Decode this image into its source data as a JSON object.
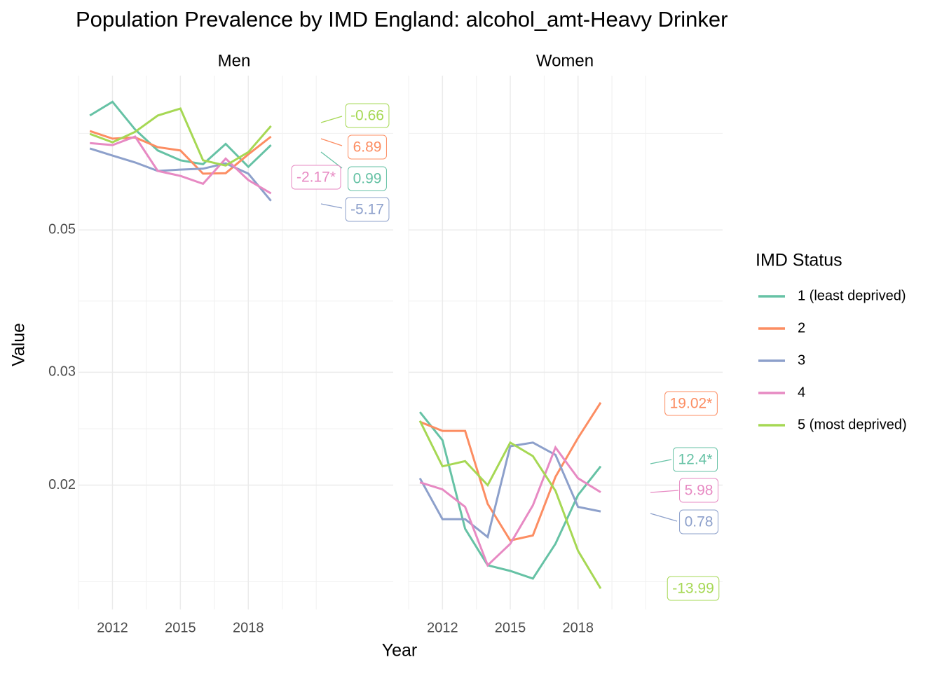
{
  "chart_data": {
    "type": "line",
    "title": "Population Prevalence by IMD England: alcohol_amt-Heavy Drinker",
    "x_label": "Year",
    "y_label": "Value",
    "legend_title": "IMD Status",
    "log_y": true,
    "grid": true,
    "legend_position": "right",
    "xlim": [
      2010.5,
      2024.4
    ],
    "xticks": [
      2012,
      2015,
      2018
    ],
    "ylim": [
      0.0128,
      0.087
    ],
    "yticks": [
      0.02,
      0.03,
      0.05
    ],
    "x": [
      2011,
      2012,
      2013,
      2014,
      2015,
      2016,
      2017,
      2018,
      2019
    ],
    "series": [
      {
        "name": "1 (least deprived)",
        "color": "#66c2a5"
      },
      {
        "name": "2",
        "color": "#fc8d62"
      },
      {
        "name": "3",
        "color": "#8da0cb"
      },
      {
        "name": "4",
        "color": "#e78ac3"
      },
      {
        "name": "5 (most deprived)",
        "color": "#a6d854"
      }
    ],
    "facets": [
      {
        "title": "Men",
        "values": [
          [
            0.0754,
            0.0792,
            0.0717,
            0.0665,
            0.0642,
            0.0633,
            0.0681,
            0.0627,
            0.0678
          ],
          [
            0.0713,
            0.0694,
            0.0697,
            0.0673,
            0.0665,
            0.0612,
            0.0613,
            0.0656,
            0.0699
          ],
          [
            0.067,
            0.0653,
            0.0637,
            0.0618,
            0.0621,
            0.0623,
            0.0635,
            0.0612,
            0.0555
          ],
          [
            0.0683,
            0.0678,
            0.0699,
            0.0618,
            0.0607,
            0.059,
            0.0646,
            0.0598,
            0.057
          ],
          [
            0.0706,
            0.0685,
            0.0711,
            0.0754,
            0.0773,
            0.0642,
            0.063,
            0.0661,
            0.0726
          ]
        ],
        "annotations": [
          "0.99",
          "6.89",
          "-5.17",
          "-2.17*",
          "-0.66"
        ]
      },
      {
        "title": "Women",
        "values": [
          [
            0.026,
            0.0235,
            0.0171,
            0.015,
            0.0147,
            0.0143,
            0.0162,
            0.0193,
            0.0214
          ],
          [
            0.0251,
            0.0243,
            0.0243,
            0.0187,
            0.0164,
            0.0167,
            0.0206,
            0.0237,
            0.0269
          ],
          [
            0.0205,
            0.0177,
            0.0177,
            0.0166,
            0.023,
            0.0233,
            0.0223,
            0.0185,
            0.0182
          ],
          [
            0.0202,
            0.0197,
            0.0185,
            0.015,
            0.0162,
            0.0186,
            0.0229,
            0.0205,
            0.0195
          ],
          [
            0.0252,
            0.0214,
            0.0218,
            0.02,
            0.0233,
            0.0222,
            0.0196,
            0.0158,
            0.0138
          ]
        ],
        "annotations": [
          "12.4*",
          "19.02*",
          "0.78",
          "5.98",
          "-13.99"
        ]
      }
    ]
  }
}
